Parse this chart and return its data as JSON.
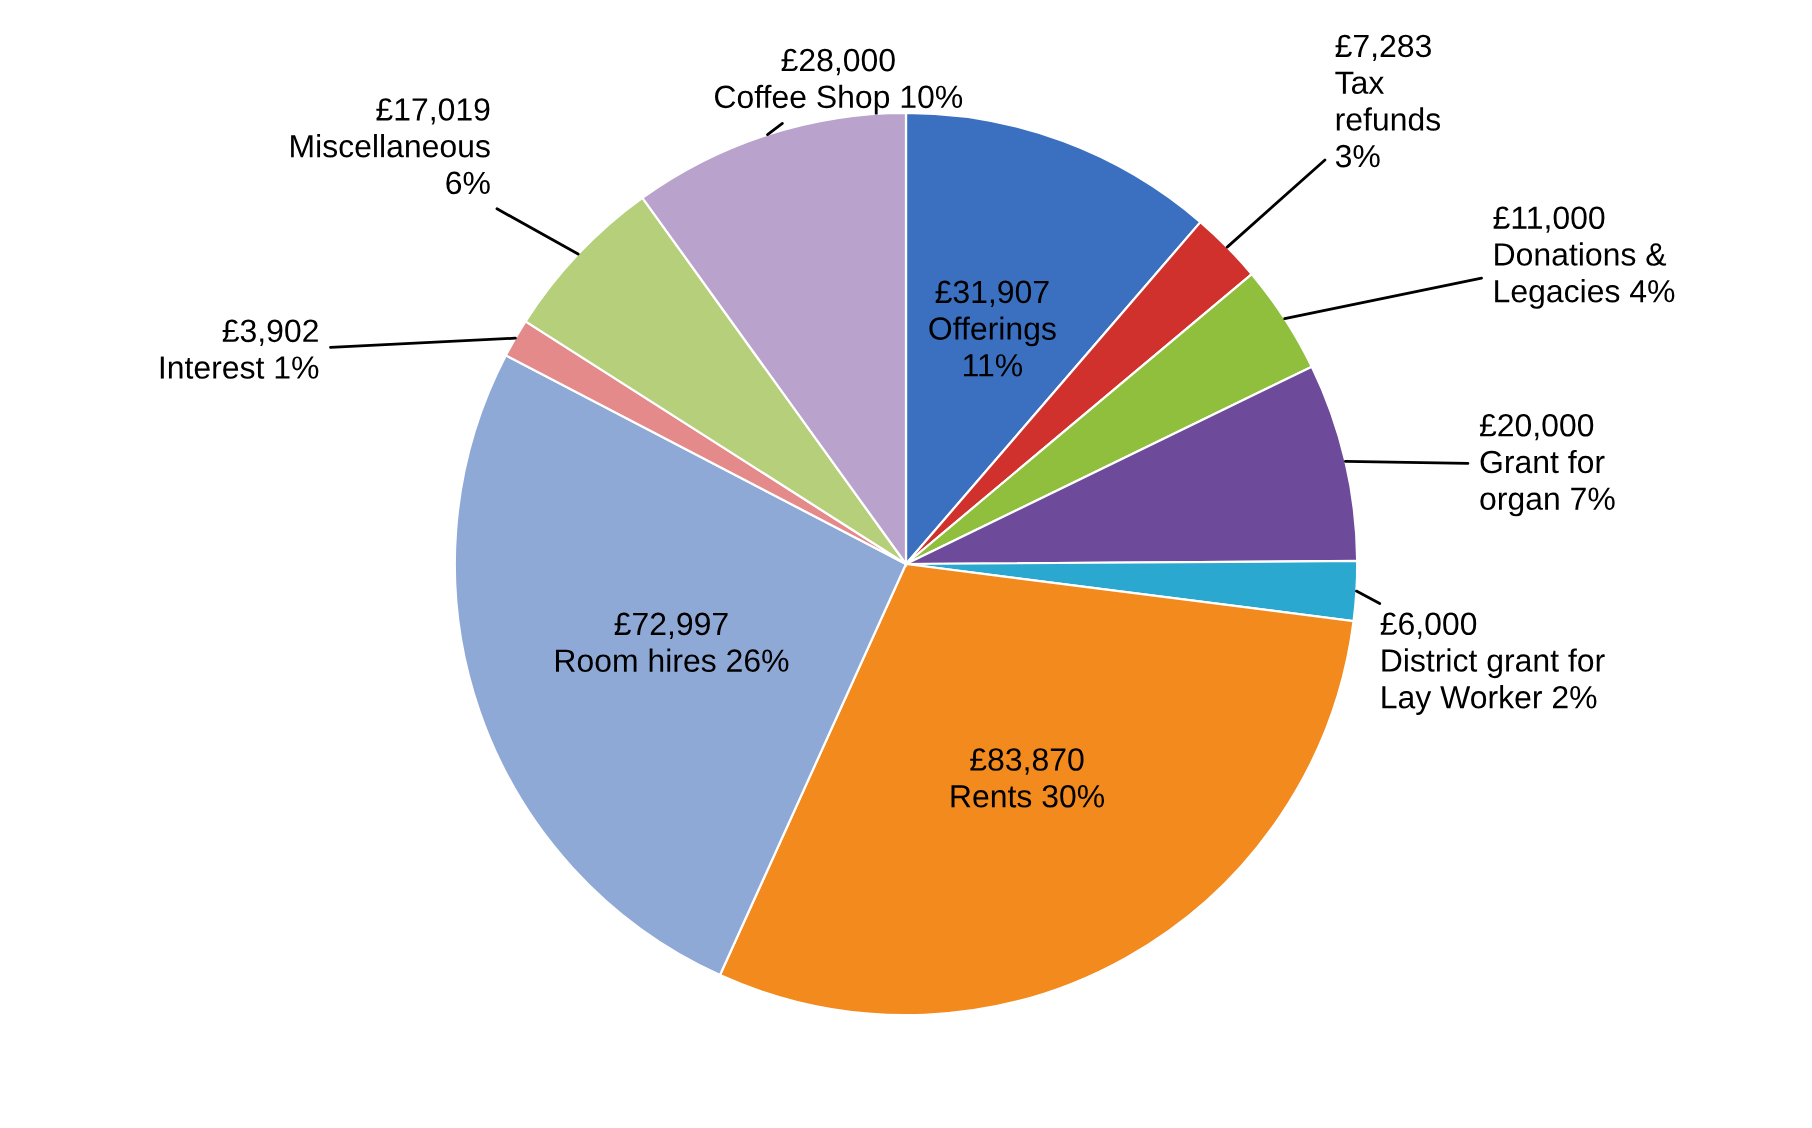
{
  "chart_data": {
    "type": "pie",
    "categories": [
      "Offerings\n11%",
      "Tax\nrefunds\n3%",
      "Donations &\nLegacies 4%",
      "Grant for\norgan 7%",
      "District grant for\nLay Worker 2%",
      "Rents 30%",
      "Room hires 26%",
      "Interest 1%",
      "Miscellaneous\n6%",
      "Coffee Shop 10%"
    ],
    "values": [
      31907,
      7283,
      11000,
      20000,
      6000,
      83870,
      72997,
      3902,
      17019,
      28000
    ],
    "value_labels": [
      "£31,907",
      "£7,283",
      "£11,000",
      "£20,000",
      "£6,000",
      "£83,870",
      "£72,997",
      "£3,902",
      "£17,019",
      "£28,000"
    ],
    "colors": [
      "#3b6fc0",
      "#d0312d",
      "#8fbf3c",
      "#6e4a9a",
      "#2aa8d0",
      "#f28a1e",
      "#8fa9d6",
      "#e58a8a",
      "#b5cf7a",
      "#b9a3cc"
    ],
    "legend": false
  }
}
